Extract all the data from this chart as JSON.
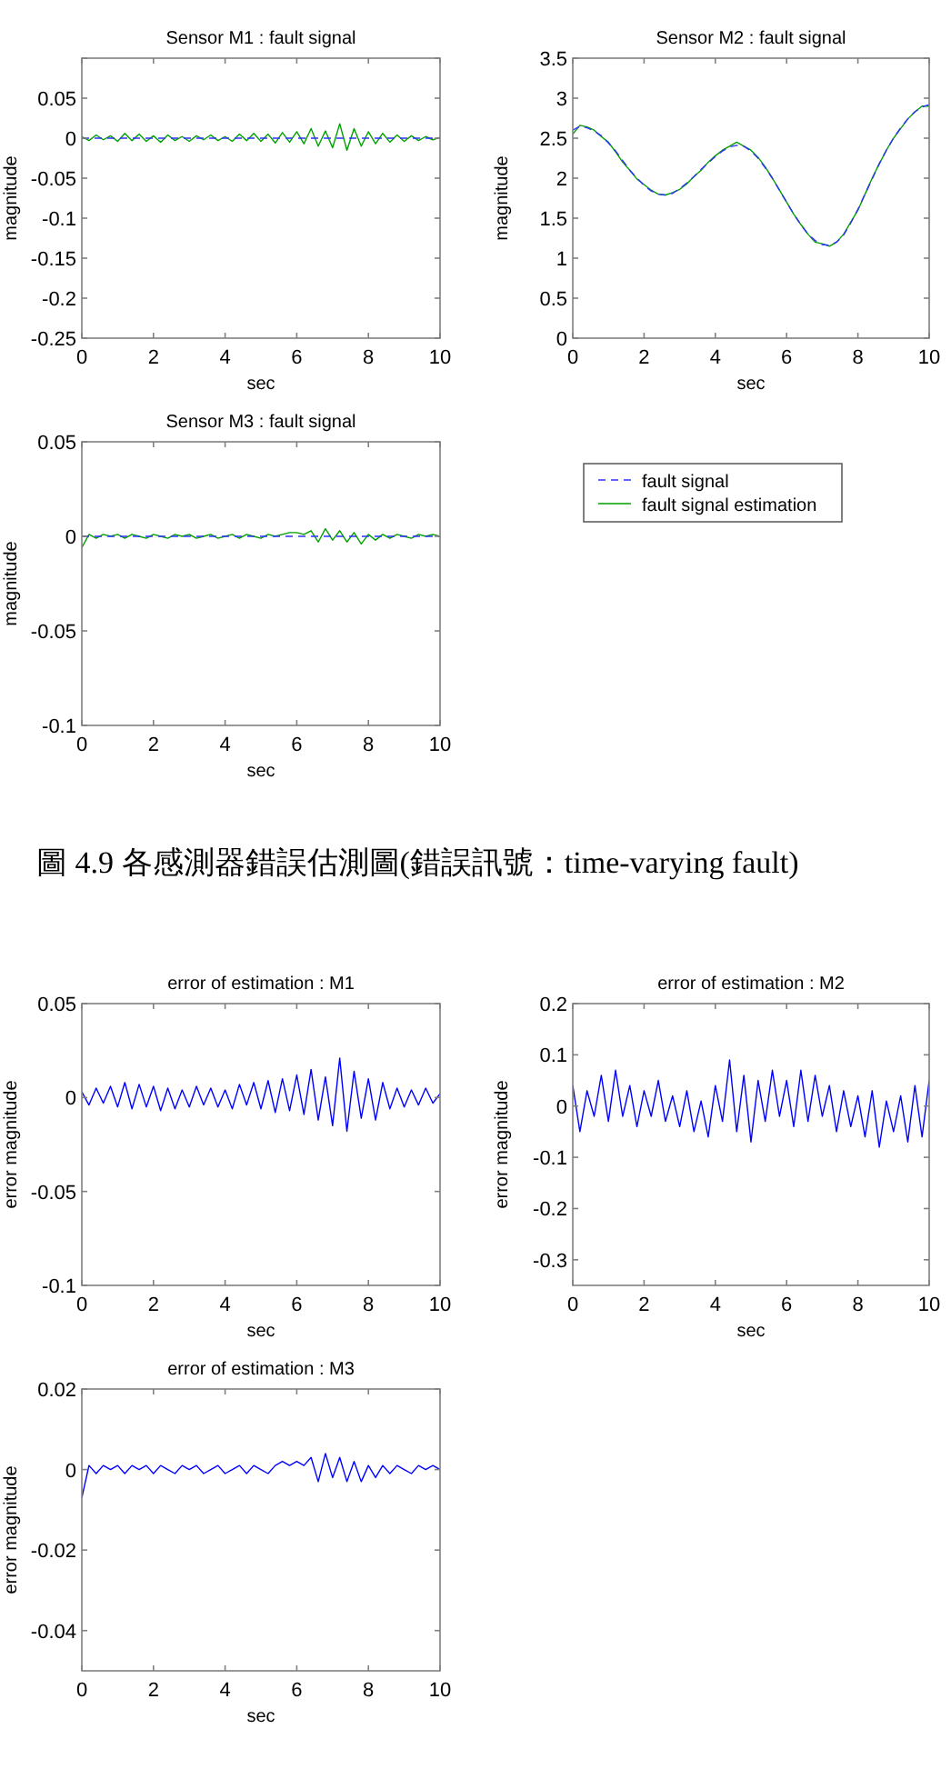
{
  "chart_data": [
    {
      "type": "line",
      "title": "Sensor M1 : fault signal",
      "xlabel": "sec",
      "ylabel": "magnitude",
      "xlim": [
        0,
        10
      ],
      "xticks": [
        0,
        2,
        4,
        6,
        8,
        10
      ],
      "ylim": [
        -0.25,
        0.1
      ],
      "yticks": [
        -0.25,
        -0.2,
        -0.15,
        -0.1,
        -0.05,
        0,
        0.05,
        {
          "value": 0.1,
          "label": null
        }
      ],
      "x": [
        0,
        0.2,
        0.4,
        0.6,
        0.8,
        1,
        1.2,
        1.4,
        1.6,
        1.8,
        2,
        2.2,
        2.4,
        2.6,
        2.8,
        3,
        3.2,
        3.4,
        3.6,
        3.8,
        4,
        4.2,
        4.4,
        4.6,
        4.8,
        5,
        5.2,
        5.4,
        5.6,
        5.8,
        6,
        6.2,
        6.4,
        6.6,
        6.8,
        7,
        7.2,
        7.4,
        7.6,
        7.8,
        8,
        8.2,
        8.4,
        8.6,
        8.8,
        9,
        9.2,
        9.4,
        9.6,
        9.8,
        10
      ],
      "series": [
        {
          "color": "#00a000",
          "line_style": "solid",
          "values": [
            0.002,
            -0.003,
            0.004,
            -0.002,
            0.003,
            -0.004,
            0.006,
            -0.003,
            0.005,
            -0.004,
            0.003,
            -0.005,
            0.004,
            -0.003,
            0.002,
            -0.004,
            0.003,
            -0.002,
            0.004,
            -0.003,
            0.002,
            -0.004,
            0.005,
            -0.003,
            0.006,
            -0.004,
            0.005,
            -0.006,
            0.007,
            -0.005,
            0.008,
            -0.007,
            0.012,
            -0.01,
            0.009,
            -0.012,
            0.018,
            -0.015,
            0.012,
            -0.01,
            0.008,
            -0.007,
            0.006,
            -0.005,
            0.004,
            -0.004,
            0.003,
            -0.003,
            0.002,
            -0.002,
            0.001
          ]
        },
        {
          "color": "#3030ff",
          "line_style": "dashed",
          "values": [
            0,
            0,
            0,
            0,
            0,
            0,
            0,
            0,
            0,
            0,
            0,
            0,
            0,
            0,
            0,
            0,
            0,
            0,
            0,
            0,
            0,
            0,
            0,
            0,
            0,
            0,
            0,
            0,
            0,
            0,
            0,
            0,
            0,
            0,
            0,
            0,
            0,
            0,
            0,
            0,
            0,
            0,
            0,
            0,
            0,
            0,
            0,
            0,
            0,
            0,
            0
          ]
        }
      ]
    },
    {
      "type": "line",
      "title": "Sensor M2 : fault signal",
      "xlabel": "sec",
      "ylabel": "magnitude",
      "xlim": [
        0,
        10
      ],
      "xticks": [
        0,
        2,
        4,
        6,
        8,
        10
      ],
      "ylim": [
        0,
        3.5
      ],
      "yticks": [
        0,
        0.5,
        1,
        1.5,
        2,
        2.5,
        3,
        3.5
      ],
      "x": [
        0,
        0.2,
        0.4,
        0.6,
        0.8,
        1,
        1.2,
        1.4,
        1.6,
        1.8,
        2,
        2.2,
        2.4,
        2.6,
        2.8,
        3,
        3.2,
        3.4,
        3.6,
        3.8,
        4,
        4.2,
        4.4,
        4.6,
        4.8,
        5,
        5.2,
        5.4,
        5.6,
        5.8,
        6,
        6.2,
        6.4,
        6.6,
        6.8,
        7,
        7.2,
        7.4,
        7.6,
        7.8,
        8,
        8.2,
        8.4,
        8.6,
        8.8,
        9,
        9.2,
        9.4,
        9.6,
        9.8,
        10
      ],
      "series": [
        {
          "color": "#00a000",
          "line_style": "solid",
          "values": [
            2.55,
            2.66,
            2.64,
            2.6,
            2.52,
            2.45,
            2.33,
            2.2,
            2.1,
            1.99,
            1.92,
            1.85,
            1.8,
            1.79,
            1.82,
            1.86,
            1.93,
            2.02,
            2.1,
            2.2,
            2.28,
            2.35,
            2.4,
            2.45,
            2.4,
            2.35,
            2.26,
            2.14,
            2.0,
            1.85,
            1.7,
            1.55,
            1.42,
            1.3,
            1.2,
            1.18,
            1.15,
            1.2,
            1.3,
            1.45,
            1.6,
            1.8,
            2.0,
            2.18,
            2.35,
            2.5,
            2.62,
            2.74,
            2.83,
            2.9,
            2.9
          ]
        },
        {
          "color": "#3030ff",
          "line_style": "dashed",
          "values": [
            2.6,
            2.65,
            2.63,
            2.59,
            2.53,
            2.44,
            2.34,
            2.22,
            2.1,
            2.0,
            1.91,
            1.84,
            1.8,
            1.79,
            1.81,
            1.87,
            1.94,
            2.02,
            2.11,
            2.19,
            2.27,
            2.34,
            2.39,
            2.41,
            2.4,
            2.34,
            2.25,
            2.13,
            2.0,
            1.85,
            1.7,
            1.55,
            1.42,
            1.3,
            1.22,
            1.17,
            1.16,
            1.2,
            1.29,
            1.44,
            1.61,
            1.8,
            1.99,
            2.18,
            2.35,
            2.5,
            2.63,
            2.74,
            2.83,
            2.89,
            2.92
          ]
        }
      ]
    },
    {
      "type": "line",
      "title": "Sensor M3 : fault signal",
      "xlabel": "sec",
      "ylabel": "magnitude",
      "xlim": [
        0,
        10
      ],
      "xticks": [
        0,
        2,
        4,
        6,
        8,
        10
      ],
      "ylim": [
        -0.1,
        0.05
      ],
      "yticks": [
        -0.1,
        -0.05,
        0,
        0.05
      ],
      "legend": "right",
      "annotations": [
        "圖 4.9  各感測器錯誤估測圖(錯誤訊號：time-varying fault)"
      ],
      "x": [
        0,
        0.2,
        0.4,
        0.6,
        0.8,
        1,
        1.2,
        1.4,
        1.6,
        1.8,
        2,
        2.2,
        2.4,
        2.6,
        2.8,
        3,
        3.2,
        3.4,
        3.6,
        3.8,
        4,
        4.2,
        4.4,
        4.6,
        4.8,
        5,
        5.2,
        5.4,
        5.6,
        5.8,
        6,
        6.2,
        6.4,
        6.6,
        6.8,
        7,
        7.2,
        7.4,
        7.6,
        7.8,
        8,
        8.2,
        8.4,
        8.6,
        8.8,
        9,
        9.2,
        9.4,
        9.6,
        9.8,
        10
      ],
      "series": [
        {
          "name": "fault signal estimation",
          "color": "#00a000",
          "line_style": "solid",
          "values": [
            -0.006,
            0.001,
            -0.001,
            0.001,
            0,
            0.001,
            -0.001,
            0.001,
            0,
            -0.001,
            0.001,
            0,
            -0.001,
            0.001,
            0,
            0.001,
            -0.001,
            0,
            0.001,
            -0.001,
            0,
            0.001,
            -0.001,
            0.001,
            0,
            -0.001,
            0.001,
            0,
            0.001,
            0.002,
            0.002,
            0.001,
            0.003,
            -0.003,
            0.004,
            -0.002,
            0.003,
            -0.003,
            0.002,
            -0.004,
            0.001,
            -0.002,
            0.001,
            -0.001,
            0.001,
            0,
            -0.001,
            0.001,
            0,
            0.001,
            0
          ]
        },
        {
          "name": "fault signal",
          "color": "#3030ff",
          "line_style": "dashed",
          "values": [
            0,
            0,
            0,
            0,
            0,
            0,
            0,
            0,
            0,
            0,
            0,
            0,
            0,
            0,
            0,
            0,
            0,
            0,
            0,
            0,
            0,
            0,
            0,
            0,
            0,
            0,
            0,
            0,
            0,
            0,
            0,
            0,
            0,
            0,
            0,
            0,
            0,
            0,
            0,
            0,
            0,
            0,
            0,
            0,
            0,
            0,
            0,
            0,
            0,
            0,
            0
          ]
        }
      ]
    },
    {
      "type": "line",
      "title": "error of estimation : M1",
      "xlabel": "sec",
      "ylabel": "error magnitude",
      "xlim": [
        0,
        10
      ],
      "xticks": [
        0,
        2,
        4,
        6,
        8,
        10
      ],
      "ylim": [
        -0.1,
        0.05
      ],
      "yticks": [
        -0.1,
        -0.05,
        0,
        0.05
      ],
      "x": [
        0,
        0.2,
        0.4,
        0.6,
        0.8,
        1,
        1.2,
        1.4,
        1.6,
        1.8,
        2,
        2.2,
        2.4,
        2.6,
        2.8,
        3,
        3.2,
        3.4,
        3.6,
        3.8,
        4,
        4.2,
        4.4,
        4.6,
        4.8,
        5,
        5.2,
        5.4,
        5.6,
        5.8,
        6,
        6.2,
        6.4,
        6.6,
        6.8,
        7,
        7.2,
        7.4,
        7.6,
        7.8,
        8,
        8.2,
        8.4,
        8.6,
        8.8,
        9,
        9.2,
        9.4,
        9.6,
        9.8,
        10
      ],
      "series": [
        {
          "color": "#0000ff",
          "line_style": "solid",
          "values": [
            0.003,
            -0.004,
            0.005,
            -0.003,
            0.006,
            -0.005,
            0.008,
            -0.006,
            0.007,
            -0.005,
            0.006,
            -0.007,
            0.005,
            -0.006,
            0.004,
            -0.005,
            0.006,
            -0.004,
            0.005,
            -0.005,
            0.004,
            -0.006,
            0.007,
            -0.004,
            0.008,
            -0.006,
            0.009,
            -0.008,
            0.01,
            -0.007,
            0.012,
            -0.009,
            0.015,
            -0.012,
            0.011,
            -0.015,
            0.021,
            -0.018,
            0.014,
            -0.011,
            0.01,
            -0.012,
            0.008,
            -0.006,
            0.005,
            -0.005,
            0.004,
            -0.004,
            0.005,
            -0.003,
            0.002
          ]
        }
      ]
    },
    {
      "type": "line",
      "title": "error of estimation : M2",
      "xlabel": "sec",
      "ylabel": "error magnitude",
      "xlim": [
        0,
        10
      ],
      "xticks": [
        0,
        2,
        4,
        6,
        8,
        10
      ],
      "ylim": [
        -0.35,
        0.2
      ],
      "yticks": [
        -0.3,
        -0.2,
        -0.1,
        0,
        0.1,
        0.2
      ],
      "x": [
        0,
        0.2,
        0.4,
        0.6,
        0.8,
        1,
        1.2,
        1.4,
        1.6,
        1.8,
        2,
        2.2,
        2.4,
        2.6,
        2.8,
        3,
        3.2,
        3.4,
        3.6,
        3.8,
        4,
        4.2,
        4.4,
        4.6,
        4.8,
        5,
        5.2,
        5.4,
        5.6,
        5.8,
        6,
        6.2,
        6.4,
        6.6,
        6.8,
        7,
        7.2,
        7.4,
        7.6,
        7.8,
        8,
        8.2,
        8.4,
        8.6,
        8.8,
        9,
        9.2,
        9.4,
        9.6,
        9.8,
        10
      ],
      "series": [
        {
          "color": "#0000ff",
          "line_style": "solid",
          "values": [
            0.04,
            -0.05,
            0.03,
            -0.02,
            0.06,
            -0.03,
            0.07,
            -0.02,
            0.04,
            -0.04,
            0.03,
            -0.02,
            0.05,
            -0.03,
            0.02,
            -0.04,
            0.03,
            -0.05,
            0.01,
            -0.06,
            0.04,
            -0.03,
            0.09,
            -0.05,
            0.06,
            -0.07,
            0.05,
            -0.03,
            0.07,
            -0.02,
            0.05,
            -0.04,
            0.07,
            -0.03,
            0.06,
            -0.02,
            0.04,
            -0.05,
            0.03,
            -0.04,
            0.02,
            -0.06,
            0.03,
            -0.08,
            0.01,
            -0.05,
            0.02,
            -0.07,
            0.04,
            -0.06,
            0.05
          ]
        }
      ]
    },
    {
      "type": "line",
      "title": "error of estimation : M3",
      "xlabel": "sec",
      "ylabel": "error magnitude",
      "xlim": [
        0,
        10
      ],
      "xticks": [
        0,
        2,
        4,
        6,
        8,
        10
      ],
      "ylim": [
        -0.05,
        0.02
      ],
      "yticks": [
        -0.04,
        -0.02,
        0,
        0.02
      ],
      "x": [
        0,
        0.2,
        0.4,
        0.6,
        0.8,
        1,
        1.2,
        1.4,
        1.6,
        1.8,
        2,
        2.2,
        2.4,
        2.6,
        2.8,
        3,
        3.2,
        3.4,
        3.6,
        3.8,
        4,
        4.2,
        4.4,
        4.6,
        4.8,
        5,
        5.2,
        5.4,
        5.6,
        5.8,
        6,
        6.2,
        6.4,
        6.6,
        6.8,
        7,
        7.2,
        7.4,
        7.6,
        7.8,
        8,
        8.2,
        8.4,
        8.6,
        8.8,
        9,
        9.2,
        9.4,
        9.6,
        9.8,
        10
      ],
      "series": [
        {
          "color": "#0000ff",
          "line_style": "solid",
          "values": [
            -0.007,
            0.001,
            -0.001,
            0.001,
            0,
            0.001,
            -0.001,
            0.001,
            0,
            0.001,
            -0.001,
            0.001,
            0,
            -0.001,
            0.001,
            0,
            0.001,
            -0.001,
            0,
            0.001,
            -0.001,
            0,
            0.001,
            -0.001,
            0.001,
            0,
            -0.001,
            0.001,
            0.002,
            0.001,
            0.002,
            0.001,
            0.003,
            -0.003,
            0.004,
            -0.002,
            0.003,
            -0.003,
            0.002,
            -0.003,
            0.001,
            -0.002,
            0.001,
            -0.001,
            0.001,
            0,
            -0.001,
            0.001,
            0,
            0.001,
            0
          ]
        }
      ]
    }
  ]
}
